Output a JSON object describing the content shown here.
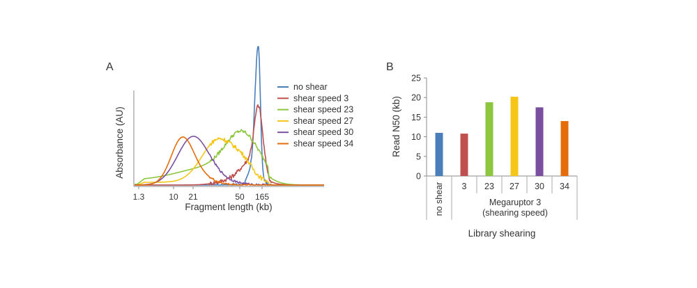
{
  "chart_data": [
    {
      "panel_label": "A",
      "type": "line",
      "xlabel": "Fragment length (kb)",
      "ylabel": "Absorbance (AU)",
      "x_ticks": [
        "1.3",
        "10",
        "21",
        "50",
        "165"
      ],
      "series": [
        {
          "name": "no shear",
          "color": "#4a7ebb"
        },
        {
          "name": "shear speed 3",
          "color": "#c0504d"
        },
        {
          "name": "shear speed 23",
          "color": "#8dc63f"
        },
        {
          "name": "shear speed 27",
          "color": "#f5c518"
        },
        {
          "name": "shear speed 30",
          "color": "#7b4fa0"
        },
        {
          "name": "shear speed 34",
          "color": "#e46c0a"
        }
      ]
    },
    {
      "panel_label": "B",
      "type": "bar",
      "ylabel": "Read N50 (kb)",
      "xlabel": "Library shearing",
      "ylim": [
        0,
        25
      ],
      "y_ticks": [
        "0",
        "5",
        "10",
        "15",
        "20",
        "25"
      ],
      "categories": [
        "no shear",
        "3",
        "23",
        "27",
        "30",
        "34"
      ],
      "values": [
        11,
        10.8,
        18.8,
        20.2,
        17.5,
        14
      ],
      "colors": [
        "#4a7ebb",
        "#c0504d",
        "#8dc63f",
        "#f5c518",
        "#7b4fa0",
        "#e46c0a"
      ],
      "group_label_line1": "Megaruptor 3",
      "group_label_line2": "(shearing speed)"
    }
  ]
}
